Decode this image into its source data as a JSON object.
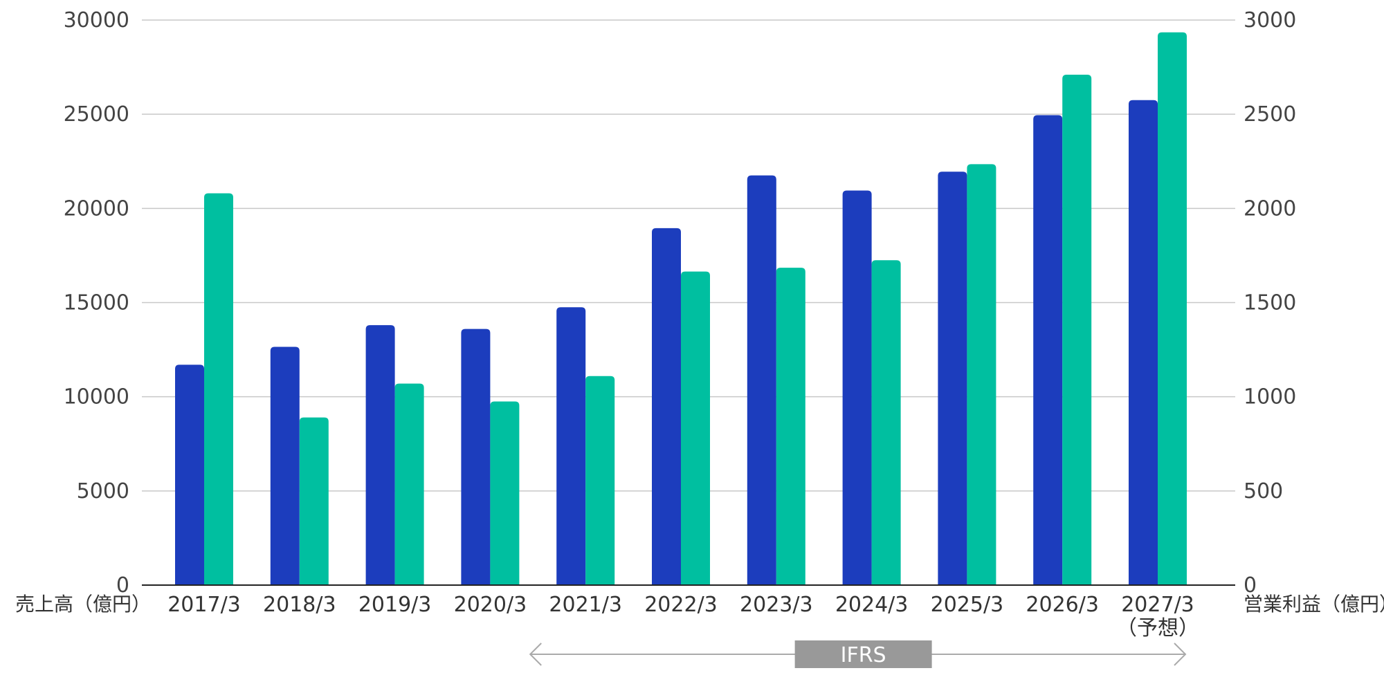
{
  "chart_data": {
    "type": "bar",
    "categories": [
      "2017/3",
      "2018/3",
      "2019/3",
      "2020/3",
      "2021/3",
      "2022/3",
      "2023/3",
      "2024/3",
      "2025/3",
      "2026/3",
      "2027/3"
    ],
    "category_notes": [
      "",
      "",
      "",
      "",
      "",
      "",
      "",
      "",
      "",
      "",
      "（予想）"
    ],
    "series": [
      {
        "color": "#1c3dbd",
        "axis": "left",
        "values": [
          11700,
          12650,
          13800,
          13600,
          14750,
          18950,
          21750,
          20950,
          21950,
          24950,
          25750
        ]
      },
      {
        "color": "#00bfa0",
        "axis": "right",
        "values": [
          2080,
          890,
          1070,
          975,
          1110,
          1665,
          1685,
          1725,
          2235,
          2710,
          2935
        ]
      }
    ],
    "left_axis": {
      "label": "売上高（億円）",
      "ylim": [
        0,
        30000
      ],
      "ticks": [
        "0",
        "5000",
        "10000",
        "15000",
        "20000",
        "25000",
        "30000"
      ]
    },
    "right_axis": {
      "label": "営業利益（億円）",
      "ylim": [
        0,
        3000
      ],
      "ticks": [
        "0",
        "500",
        "1000",
        "1500",
        "2000",
        "2500",
        "3000"
      ]
    },
    "grid": true,
    "annotation": {
      "label": "IFRS",
      "from": "2021/3",
      "to": "2027/3"
    }
  }
}
